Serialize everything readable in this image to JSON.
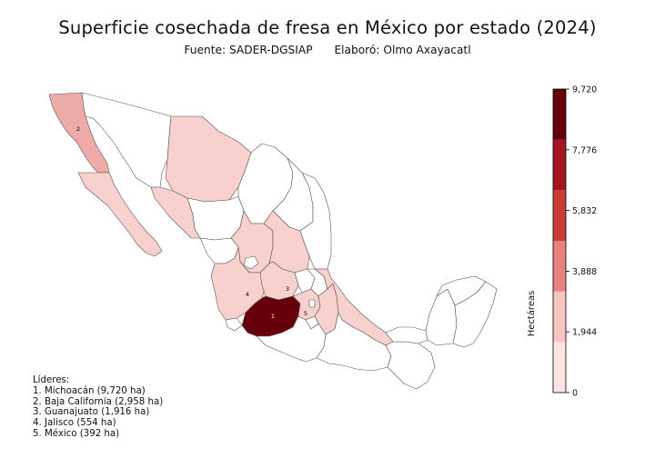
{
  "title": "Superficie cosechada de fresa en México por estado (2024)",
  "source": "Fuente: SADER-DGSIAP",
  "author": "Elaboró: Olmo Axayacatl",
  "colorbar": {
    "label": "Hectáreas",
    "ticks": [
      "0",
      "1,944",
      "3,888",
      "5,832",
      "7,776",
      "9,720"
    ],
    "colors": [
      "#fde4e3",
      "#f7c4c1",
      "#e8827d",
      "#cc3a36",
      "#a6151d",
      "#67000d"
    ]
  },
  "leaders": {
    "heading": "Líderes:",
    "items": [
      "1. Michoacán (9,720 ha)",
      "2. Baja California (2,958 ha)",
      "3. Guanajuato (1,916 ha)",
      "4. Jalisco (554 ha)",
      "5. México (392 ha)"
    ]
  },
  "state_markers": [
    "1",
    "2",
    "3",
    "4",
    "5"
  ],
  "legend_colors": {
    "none": "#ffffff",
    "low": "#f8d0cd",
    "mid": "#eeaaa6",
    "top": "#67000d",
    "border": "#555555"
  }
}
